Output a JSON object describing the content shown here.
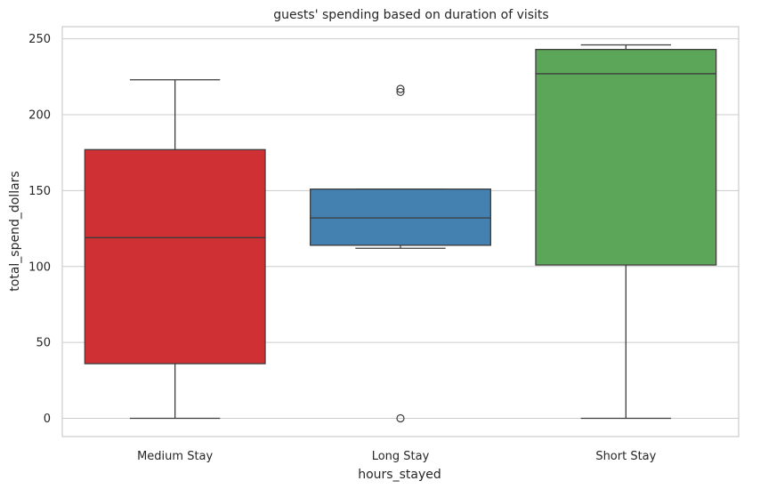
{
  "chart_data": {
    "type": "box",
    "title": "guests' spending based on duration of visits",
    "xlabel": "hours_stayed",
    "ylabel": "total_spend_dollars",
    "ylim": [
      -12,
      258
    ],
    "yticks": [
      0,
      50,
      100,
      150,
      200,
      250
    ],
    "grid": true,
    "categories": [
      "Medium Stay",
      "Long Stay",
      "Short Stay"
    ],
    "boxes": [
      {
        "category": "Medium Stay",
        "color": "#cf3033",
        "whisker_low": 0,
        "q1": 36,
        "median": 119,
        "q3": 177,
        "whisker_high": 223,
        "outliers": []
      },
      {
        "category": "Long Stay",
        "color": "#4480b0",
        "whisker_low": 112,
        "q1": 114,
        "median": 132,
        "q3": 151,
        "whisker_high": 151,
        "outliers": [
          0,
          215,
          217
        ]
      },
      {
        "category": "Short Stay",
        "color": "#5ca65a",
        "whisker_low": 0,
        "q1": 101,
        "median": 227,
        "q3": 243,
        "whisker_high": 246,
        "outliers": []
      }
    ]
  }
}
